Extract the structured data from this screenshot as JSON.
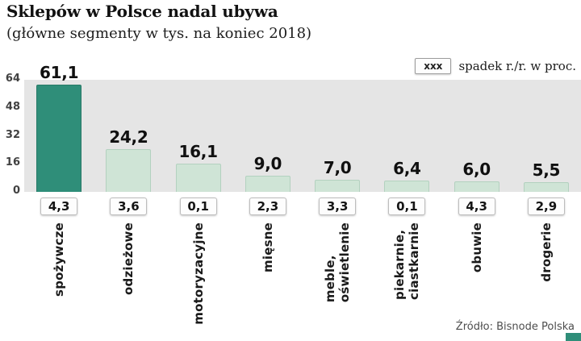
{
  "title": "Sklepów w Polsce nadal ubywa",
  "subtitle": "(główne segmenty w tys. na koniec 2018)",
  "legend": {
    "marker": "xxx",
    "label": "spadek r./r. w proc."
  },
  "source": "Źródło: Bisnode Polska",
  "colors": {
    "highlight_bar": "#2f8e79",
    "bar": "#cfe4d6",
    "bar_border": "#b3d1bf",
    "plot_background": "#e5e5e5",
    "accent_square": "#2f8e79"
  },
  "chart_data": {
    "type": "bar",
    "title": "Sklepów w Polsce nadal ubywa",
    "subtitle": "(główne segmenty w tys. na koniec 2018)",
    "unit": "tys. sklepów",
    "categories": [
      "spożywcze",
      "odzieżowe",
      "motoryzacyjne",
      "mięsne",
      "meble, oświetlenie",
      "piekarnie, ciastkarnie",
      "obuwie",
      "drogerie"
    ],
    "values": [
      61.1,
      24.2,
      16.1,
      9.0,
      7.0,
      6.4,
      6.0,
      5.5
    ],
    "value_labels": [
      "61,1",
      "24,2",
      "16,1",
      "9,0",
      "7,0",
      "6,4",
      "6,0",
      "5,5"
    ],
    "decline_yoy_percent": [
      4.3,
      3.6,
      0.1,
      2.3,
      3.3,
      0.1,
      4.3,
      2.9
    ],
    "decline_labels": [
      "4,3",
      "3,6",
      "0,1",
      "2,3",
      "3,3",
      "0,1",
      "4,3",
      "2,9"
    ],
    "ylim": [
      0,
      64
    ],
    "yticks": [
      64,
      48,
      32,
      16,
      0
    ],
    "highlight_index": 0,
    "legend_label": "spadek r./r. w proc.",
    "grid": false,
    "legend_position": "top-right"
  }
}
